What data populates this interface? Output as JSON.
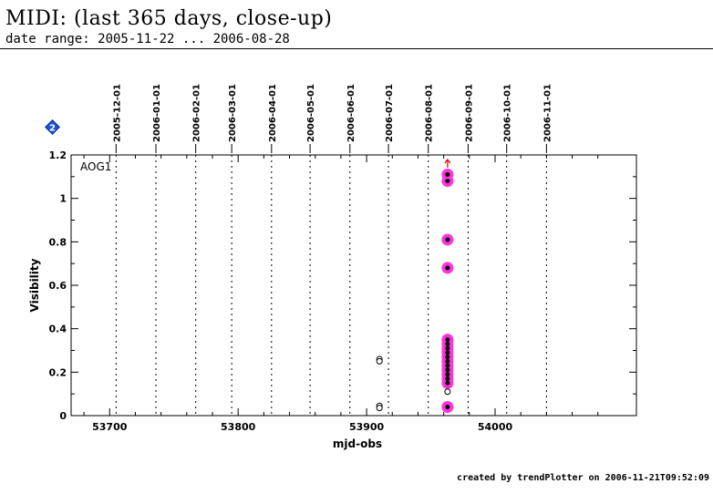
{
  "header": {
    "title": "MIDI: (last 365 days, close-up)",
    "subtitle": "date range: 2005-11-22 ... 2006-08-28"
  },
  "footer": {
    "text": "created by trendPlotter on 2006-11-21T09:52:09"
  },
  "marker": {
    "icon": "blue-diamond-icon",
    "label": "2",
    "color": "#1a55d8"
  },
  "colors": {
    "highlight": "#ff33dd",
    "point": "#000000",
    "arrow": "#dd0000",
    "grid": "#000000"
  },
  "chart_data": {
    "type": "scatter",
    "panel_label": "AOG1",
    "xlabel": "mjd-obs",
    "ylabel": "Visibility",
    "xlim": [
      53670,
      54110
    ],
    "ylim": [
      0,
      1.2
    ],
    "x_ticks": [
      53700,
      53800,
      53900,
      54000
    ],
    "y_ticks": [
      0,
      0.2,
      0.4,
      0.6,
      0.8,
      1,
      1.2
    ],
    "date_lines": [
      {
        "label": "2005-12-01",
        "mjd": 53705
      },
      {
        "label": "2006-01-01",
        "mjd": 53736
      },
      {
        "label": "2006-02-01",
        "mjd": 53767
      },
      {
        "label": "2006-03-01",
        "mjd": 53795
      },
      {
        "label": "2006-04-01",
        "mjd": 53826
      },
      {
        "label": "2006-05-01",
        "mjd": 53856
      },
      {
        "label": "2006-06-01",
        "mjd": 53887
      },
      {
        "label": "2006-07-01",
        "mjd": 53917
      },
      {
        "label": "2006-08-01",
        "mjd": 53948
      },
      {
        "label": "2006-09-01",
        "mjd": 53979
      },
      {
        "label": "2006-10-01",
        "mjd": 54009
      },
      {
        "label": "2006-11-01",
        "mjd": 54040
      }
    ],
    "highlighted_points": [
      {
        "x": 53963,
        "y": 1.11
      },
      {
        "x": 53963,
        "y": 1.08
      },
      {
        "x": 53963,
        "y": 0.81
      },
      {
        "x": 53963,
        "y": 0.68
      },
      {
        "x": 53963,
        "y": 0.35
      },
      {
        "x": 53963,
        "y": 0.33
      },
      {
        "x": 53963,
        "y": 0.31
      },
      {
        "x": 53963,
        "y": 0.29
      },
      {
        "x": 53963,
        "y": 0.27
      },
      {
        "x": 53963,
        "y": 0.25
      },
      {
        "x": 53963,
        "y": 0.23
      },
      {
        "x": 53963,
        "y": 0.21
      },
      {
        "x": 53963,
        "y": 0.19
      },
      {
        "x": 53963,
        "y": 0.17
      },
      {
        "x": 53963,
        "y": 0.15
      },
      {
        "x": 53963,
        "y": 0.04
      }
    ],
    "open_points": [
      {
        "x": 53910,
        "y": 0.26
      },
      {
        "x": 53910,
        "y": 0.25
      },
      {
        "x": 53910,
        "y": 0.045
      },
      {
        "x": 53910,
        "y": 0.035
      },
      {
        "x": 53963,
        "y": 0.11
      }
    ],
    "off_scale_arrow": {
      "x": 53963,
      "direction": "up"
    }
  }
}
